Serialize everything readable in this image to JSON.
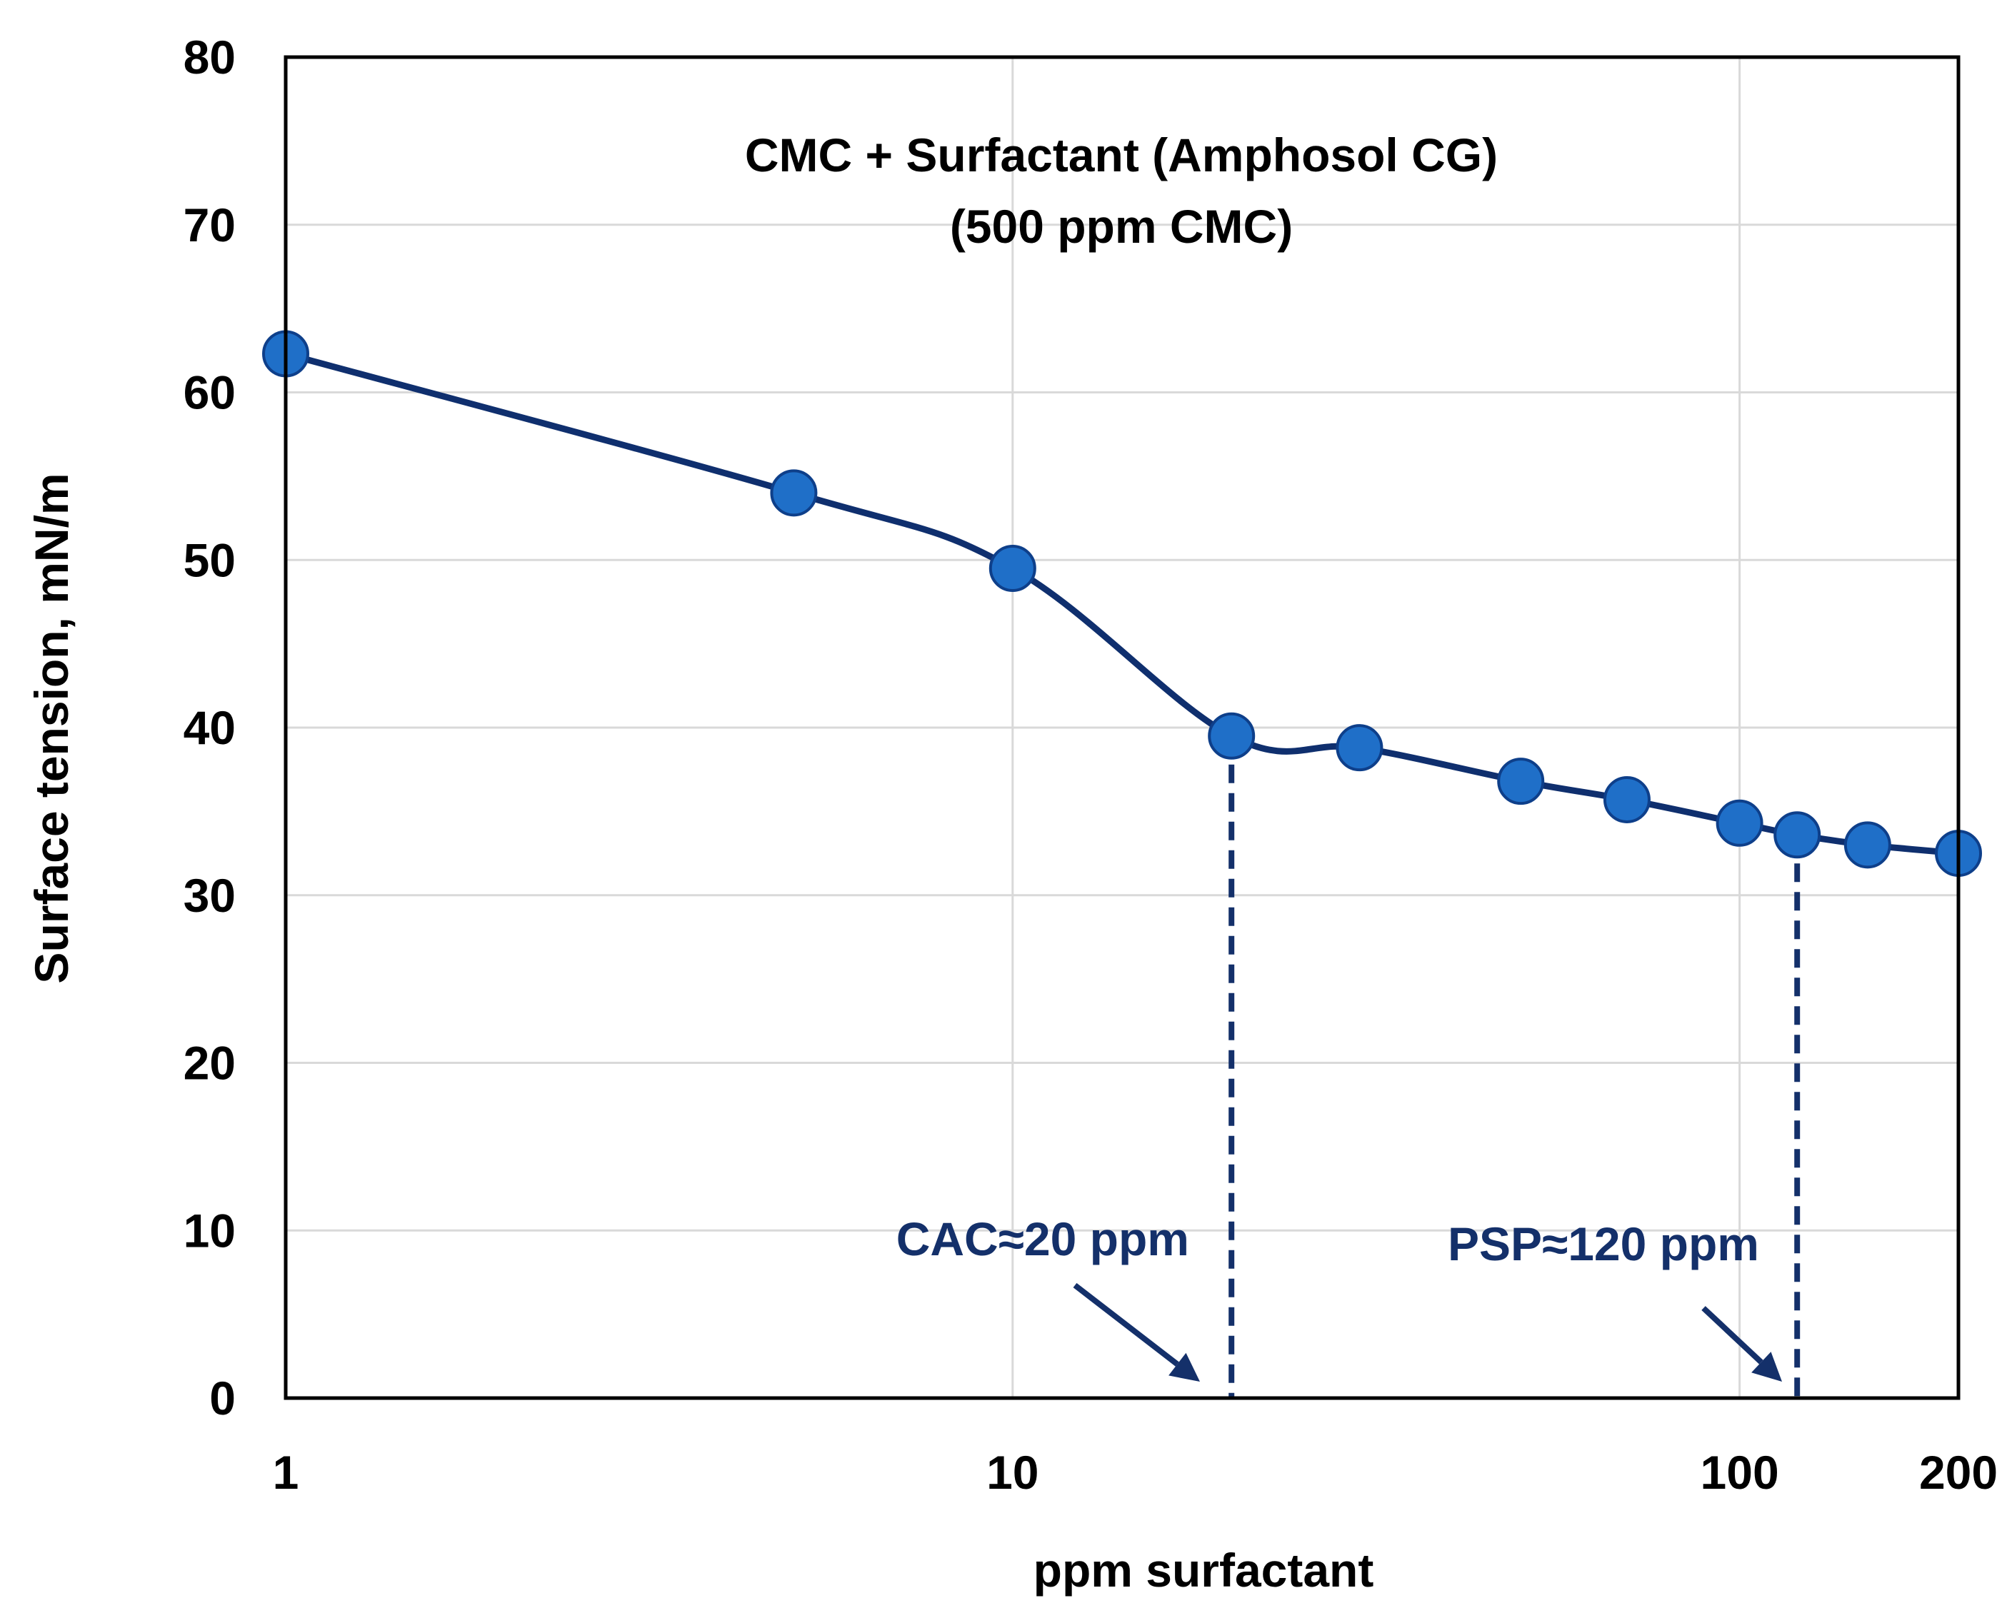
{
  "chart_data": {
    "type": "scatter",
    "title": [
      "CMC + Surfactant (Amphosol CG)",
      "(500 ppm CMC)"
    ],
    "xlabel": "ppm surfactant",
    "ylabel": "Surface tension, mN/m",
    "xscale": "log",
    "xlim": [
      1,
      200
    ],
    "ylim": [
      0,
      80
    ],
    "xticks": [
      1,
      10,
      100,
      200
    ],
    "xtick_labels": [
      "1",
      "10",
      "100",
      "200"
    ],
    "yticks": [
      0,
      10,
      20,
      30,
      40,
      50,
      60,
      70,
      80
    ],
    "ytick_labels": [
      "0",
      "10",
      "20",
      "30",
      "40",
      "50",
      "60",
      "70",
      "80"
    ],
    "xgrid": [
      1,
      10,
      100
    ],
    "grid": true,
    "series": [
      {
        "name": "CMC + Surfactant",
        "x": [
          1,
          5,
          10,
          20,
          30,
          50,
          70,
          100,
          120,
          150,
          200
        ],
        "y": [
          62.3,
          54.0,
          49.5,
          39.5,
          38.8,
          36.8,
          35.7,
          34.3,
          33.6,
          33.0,
          32.5
        ],
        "marker": "circle",
        "smooth": true
      }
    ],
    "annotations": [
      {
        "label": "CAC≈20 ppm",
        "x": 20,
        "y_top": 39.5
      },
      {
        "label": "PSP≈120 ppm",
        "x": 120,
        "y_top": 33.6
      }
    ],
    "colors": {
      "line": "#0f2f6e",
      "marker_fill": "#1f6fc8",
      "marker_edge": "#0e3f8a",
      "annotation": "#14306a",
      "grid": "#d9d9d9",
      "axis": "#000000"
    }
  }
}
